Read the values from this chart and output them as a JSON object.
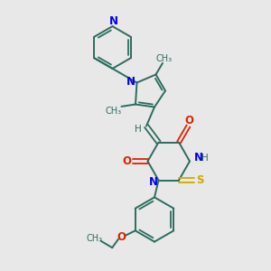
{
  "background_color": "#e8e8e8",
  "bond_color": "#2d6b5e",
  "nitrogen_color": "#0000ee",
  "oxygen_color": "#dd2200",
  "sulfur_color": "#ccaa00",
  "figsize": [
    3.0,
    3.0
  ],
  "dpi": 100,
  "xlim": [
    0,
    10
  ],
  "ylim": [
    0,
    10
  ]
}
